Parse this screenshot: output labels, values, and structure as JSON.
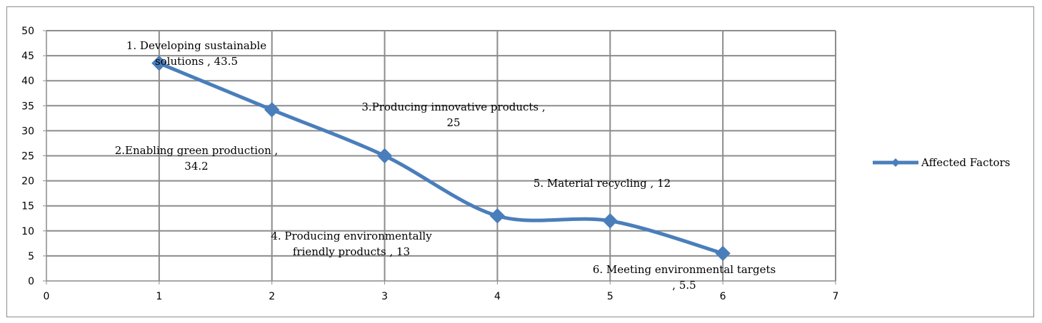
{
  "chart_data": {
    "type": "line",
    "title": "",
    "xlabel": "",
    "ylabel": "",
    "xlim": [
      0,
      7
    ],
    "ylim": [
      0,
      50
    ],
    "x_ticks": [
      0,
      1,
      2,
      3,
      4,
      5,
      6,
      7
    ],
    "y_ticks": [
      0,
      5,
      10,
      15,
      20,
      25,
      30,
      35,
      40,
      45,
      50
    ],
    "grid": true,
    "smooth": true,
    "legend_position": "right",
    "color": "#4a7ebb",
    "series": [
      {
        "name": "Affected Factors",
        "points": [
          {
            "x": 1,
            "y": 43.5,
            "label": [
              "1. Developing sustainable",
              "solutions , 43.5"
            ]
          },
          {
            "x": 2,
            "y": 34.2,
            "label": [
              "2.Enabling green production ,",
              "34.2"
            ]
          },
          {
            "x": 3,
            "y": 25,
            "label": [
              "3.Producing innovative products ,",
              "25"
            ]
          },
          {
            "x": 4,
            "y": 13,
            "label": [
              "4. Producing environmentally",
              "friendly products , 13"
            ]
          },
          {
            "x": 5,
            "y": 12,
            "label": [
              "5. Material recycling , 12"
            ]
          },
          {
            "x": 6,
            "y": 5.5,
            "label": [
              "6. Meeting environmental targets",
              ", 5.5"
            ]
          }
        ]
      }
    ]
  }
}
